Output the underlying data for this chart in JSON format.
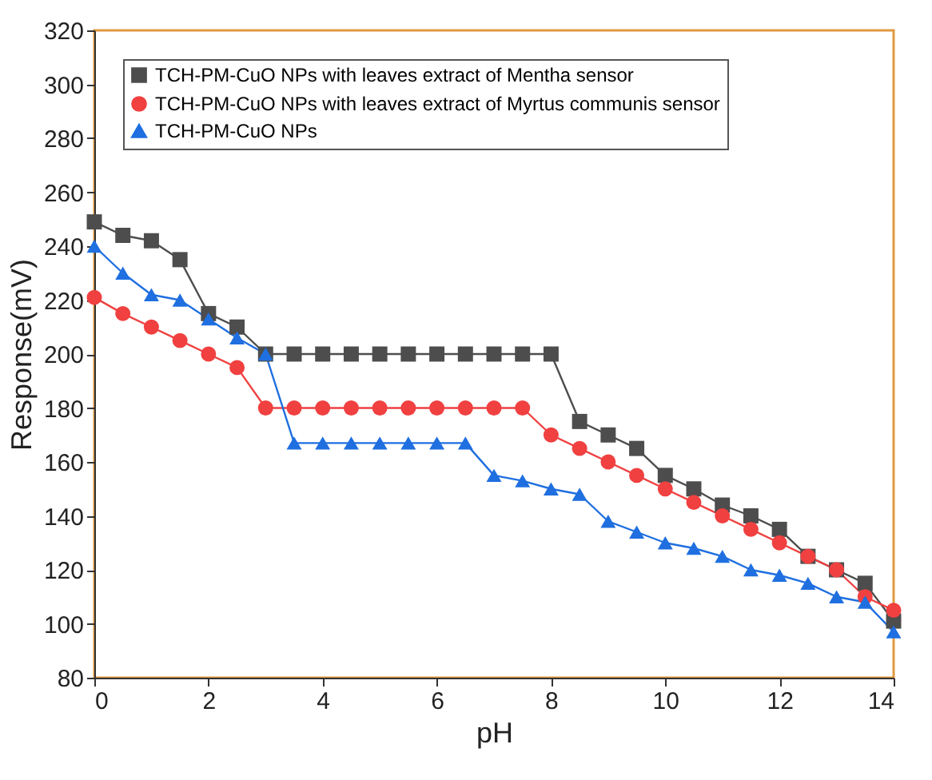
{
  "chart_data": {
    "type": "line",
    "xlabel": "pH",
    "ylabel": "Response(mV)",
    "x": [
      0,
      0.5,
      1,
      1.5,
      2,
      2.5,
      3,
      3.5,
      4,
      4.5,
      5,
      5.5,
      6,
      6.5,
      7,
      7.5,
      8,
      8.5,
      9,
      9.5,
      10,
      10.5,
      11,
      11.5,
      12,
      12.5,
      13,
      13.5,
      14
    ],
    "series": [
      {
        "name": "TCH-PM-CuO NPs with leaves extract of Mentha sensor",
        "color": "#4d4d4d",
        "marker": "square",
        "values": [
          249,
          244,
          242,
          235,
          215,
          210,
          200,
          200,
          200,
          200,
          200,
          200,
          200,
          200,
          200,
          200,
          200,
          175,
          170,
          165,
          155,
          150,
          144,
          140,
          135,
          125,
          120,
          115,
          101
        ]
      },
      {
        "name": "TCH-PM-CuO NPs with leaves extract of Myrtus communis sensor",
        "color": "#f04040",
        "marker": "circle",
        "values": [
          221,
          215,
          210,
          205,
          200,
          195,
          180,
          180,
          180,
          180,
          180,
          180,
          180,
          180,
          180,
          180,
          170,
          165,
          160,
          155,
          150,
          145,
          140,
          135,
          130,
          125,
          120,
          110,
          105
        ]
      },
      {
        "name": "TCH-PM-CuO NPs",
        "color": "#1f6fe0",
        "marker": "triangle",
        "values": [
          240,
          230,
          222,
          220,
          213,
          206,
          200,
          167,
          167,
          167,
          167,
          167,
          167,
          167,
          155,
          153,
          150,
          148,
          138,
          134,
          130,
          128,
          125,
          120,
          118,
          115,
          110,
          108,
          97
        ]
      }
    ],
    "xlim": [
      0,
      14
    ],
    "xticks": [
      0,
      2,
      4,
      6,
      8,
      10,
      12,
      14
    ],
    "ylim": [
      80,
      320
    ],
    "yticks": [
      80,
      100,
      120,
      140,
      160,
      180,
      200,
      220,
      240,
      260,
      280,
      300,
      320
    ],
    "grid": false,
    "legend": "top left"
  }
}
